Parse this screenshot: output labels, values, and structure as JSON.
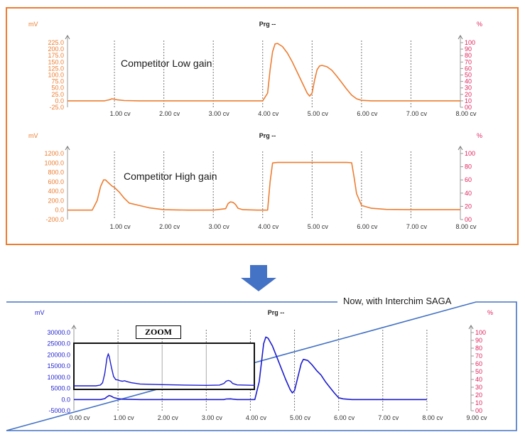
{
  "arrow_color": "#4472c4",
  "frames": {
    "top_border_color": "#ed7d31",
    "bottom_border_color": "#4472c4",
    "bottom_label": "Now, with Interchim SAGA"
  },
  "chart_data": [
    {
      "id": "low",
      "type": "line",
      "title": "Prg --",
      "annotation": "Competitor Low gain",
      "ylabel_left": "mV",
      "ylabel_right": "%",
      "axis_color_left": "#ed7d31",
      "axis_color_right": "#e0245e",
      "series_color": "#ed7d31",
      "yticks": [
        "225.0",
        "200.0",
        "175.0",
        "150.0",
        "125.0",
        "100.0",
        "75.0",
        "50.0",
        "25.0",
        "0.0",
        "-25.0"
      ],
      "ylim": [
        -25,
        225
      ],
      "right_ticks": [
        "100",
        "90",
        "80",
        "70",
        "60",
        "50",
        "40",
        "30",
        "20",
        "10",
        "00"
      ],
      "xlim": [
        0.05,
        8.0
      ],
      "xticks": [
        "1.00 cv",
        "2.00 cv",
        "3.00 cv",
        "4.00 cv",
        "5.00 cv",
        "6.00 cv",
        "7.00 cv",
        "8.00 cv"
      ],
      "grid": "dotted vertical",
      "x": [
        0.05,
        0.5,
        0.8,
        0.9,
        0.95,
        1.05,
        1.2,
        1.5,
        2.0,
        3.0,
        3.8,
        4.0,
        4.1,
        4.15,
        4.2,
        4.25,
        4.3,
        4.4,
        4.5,
        4.6,
        4.7,
        4.8,
        4.9,
        4.95,
        5.0,
        5.05,
        5.1,
        5.15,
        5.2,
        5.3,
        5.4,
        5.5,
        5.6,
        5.7,
        5.8,
        5.9,
        6.0,
        6.2,
        7.0,
        8.0
      ],
      "y": [
        0,
        0,
        0,
        4,
        8,
        4,
        1,
        0,
        0,
        0,
        0,
        0,
        30,
        120,
        190,
        220,
        222,
        210,
        185,
        150,
        110,
        70,
        30,
        18,
        30,
        80,
        120,
        135,
        137,
        132,
        118,
        95,
        70,
        45,
        22,
        8,
        2,
        0,
        0,
        0
      ]
    },
    {
      "id": "high",
      "type": "line",
      "title": "Prg --",
      "annotation": "Competitor High gain",
      "ylabel_left": "mV",
      "ylabel_right": "%",
      "axis_color_left": "#ed7d31",
      "axis_color_right": "#e0245e",
      "series_color": "#ed7d31",
      "yticks": [
        "1200.0",
        "1000.0",
        "800.0",
        "600.0",
        "400.0",
        "200.0",
        "0.0",
        "-200.0"
      ],
      "ylim": [
        -200,
        1200
      ],
      "right_ticks": [
        "100",
        "80",
        "60",
        "40",
        "20",
        "00"
      ],
      "xlim": [
        0.05,
        8.0
      ],
      "xticks": [
        "1.00 cv",
        "2.00 cv",
        "3.00 cv",
        "4.00 cv",
        "5.00 cv",
        "6.00 cv",
        "7.00 cv",
        "8.00 cv"
      ],
      "grid": "dotted vertical",
      "x": [
        0.05,
        0.55,
        0.65,
        0.72,
        0.78,
        0.82,
        0.86,
        0.9,
        0.95,
        1.0,
        1.1,
        1.2,
        1.3,
        1.5,
        1.7,
        2.0,
        2.5,
        3.0,
        3.25,
        3.3,
        3.35,
        3.4,
        3.45,
        3.5,
        3.6,
        3.9,
        4.1,
        4.15,
        4.2,
        4.3,
        5.7,
        5.8,
        5.85,
        5.9,
        6.0,
        6.2,
        6.5,
        7.0,
        8.0
      ],
      "y": [
        0,
        0,
        200,
        500,
        640,
        640,
        600,
        560,
        510,
        480,
        380,
        250,
        150,
        100,
        50,
        10,
        0,
        0,
        30,
        140,
        175,
        165,
        120,
        40,
        10,
        0,
        0,
        600,
        1000,
        1010,
        1010,
        1005,
        700,
        350,
        100,
        40,
        15,
        10,
        10
      ]
    },
    {
      "id": "saga",
      "type": "line",
      "title": "Prg --",
      "ylabel_left": "mV",
      "ylabel_right": "%",
      "axis_color_left": "#1f1fd0",
      "axis_color_right": "#e0245e",
      "series_color": "#1c1ccf",
      "yticks": [
        "30000.0",
        "25000.0",
        "20000.0",
        "15000.0",
        "10000.0",
        "5000.0",
        "0.0",
        "-5000.0"
      ],
      "ylim": [
        -5000,
        30000
      ],
      "right_ticks": [
        "100",
        "90",
        "80",
        "70",
        "60",
        "50",
        "40",
        "30",
        "20",
        "10",
        "00"
      ],
      "xlim": [
        0.0,
        9.0
      ],
      "xticks": [
        "0.00 cv",
        "1.00 cv",
        "2.00 cv",
        "3.00 cv",
        "4.00 cv",
        "5.00 cv",
        "6.00 cv",
        "7.00 cv",
        "8.00 cv",
        "9.00 cv"
      ],
      "grid": "dotted vertical",
      "x": [
        0.0,
        0.6,
        0.7,
        0.75,
        0.8,
        0.85,
        0.9,
        1.0,
        1.1,
        1.5,
        2.0,
        3.0,
        3.4,
        3.45,
        3.55,
        3.6,
        3.7,
        4.1,
        4.2,
        4.3,
        4.35,
        4.4,
        4.5,
        4.6,
        4.7,
        4.8,
        4.9,
        4.95,
        5.0,
        5.05,
        5.1,
        5.15,
        5.2,
        5.3,
        5.4,
        5.5,
        5.6,
        5.7,
        5.8,
        5.9,
        6.0,
        6.1,
        6.3,
        7.0,
        8.0
      ],
      "y": [
        0,
        0,
        400,
        1200,
        1800,
        1500,
        900,
        400,
        150,
        0,
        0,
        0,
        0,
        250,
        300,
        200,
        0,
        0,
        8000,
        25000,
        28000,
        27500,
        24000,
        19000,
        14000,
        9000,
        4500,
        3000,
        4000,
        8000,
        12000,
        16000,
        18000,
        17500,
        15500,
        13000,
        11000,
        8000,
        5500,
        3000,
        800,
        300,
        0,
        0,
        0
      ]
    }
  ],
  "zoom": {
    "label": "ZOOM",
    "x": [
      0.0,
      0.5,
      0.6,
      0.65,
      0.7,
      0.75,
      0.78,
      0.8,
      0.85,
      0.9,
      0.95,
      1.0,
      1.05,
      1.1,
      1.15,
      1.2,
      1.3,
      1.5,
      2.0,
      2.5,
      3.0,
      3.3,
      3.4,
      3.45,
      3.5,
      3.55,
      3.6,
      3.7,
      4.1
    ],
    "y": [
      0,
      0,
      0.5,
      2,
      8,
      18,
      20.5,
      19,
      12,
      6,
      4,
      3.8,
      3.2,
      3,
      3.3,
      2.8,
      2,
      1.2,
      0.8,
      0.5,
      0.3,
      0.5,
      1.5,
      3,
      3.5,
      3,
      1.5,
      0.6,
      0.3
    ],
    "color": "#1c1ccf"
  }
}
